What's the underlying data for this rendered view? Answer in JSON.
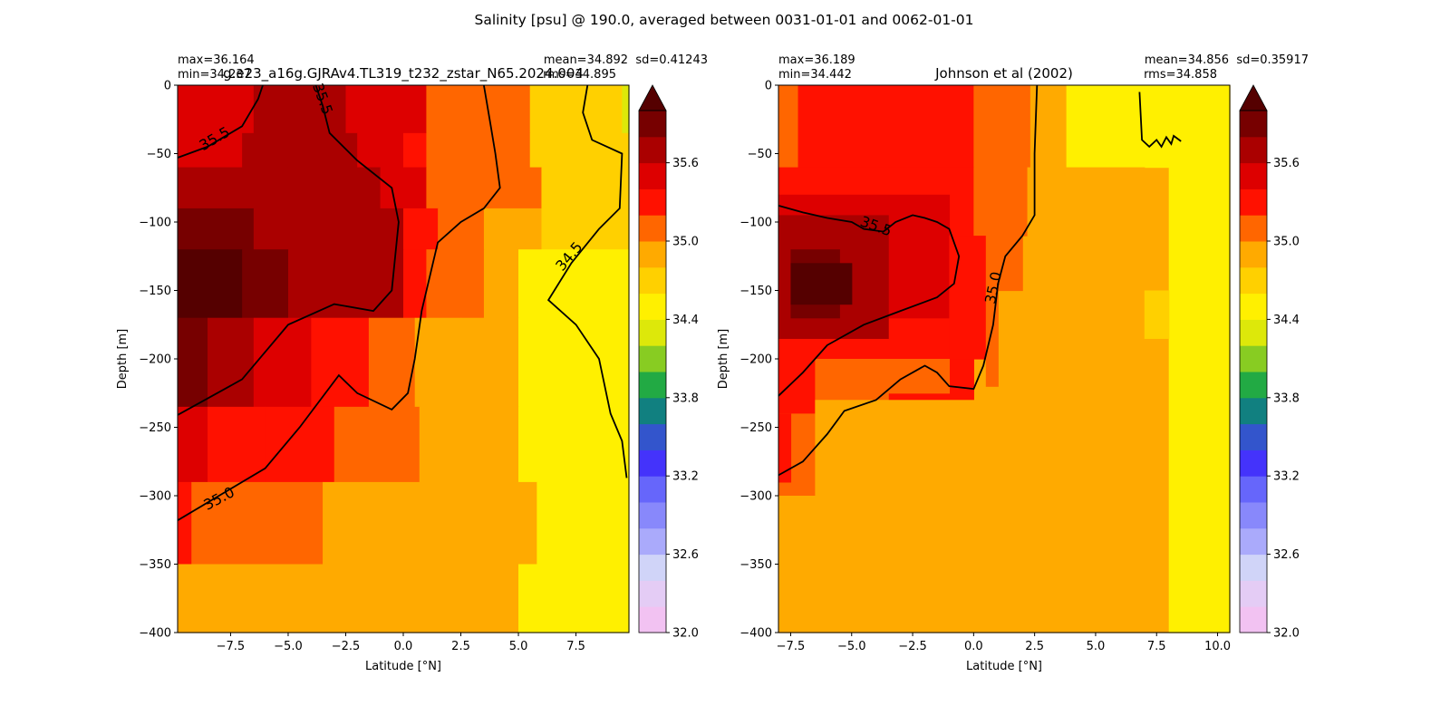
{
  "figure": {
    "suptitle": "Salinity [psu] @ 190.0, averaged between 0031-01-01 and 0062-01-01"
  },
  "colorbar": {
    "levels": [
      32.0,
      32.2,
      32.4,
      32.6,
      32.8,
      33.0,
      33.2,
      33.4,
      33.6,
      33.8,
      34.0,
      34.2,
      34.4,
      34.6,
      34.8,
      35.0,
      35.2,
      35.4,
      35.6,
      35.8,
      36.0
    ],
    "colors": [
      "#f2c2f2",
      "#e4ccf5",
      "#d0d4f8",
      "#aaaafb",
      "#8888fb",
      "#6666fb",
      "#4433fb",
      "#3355cc",
      "#118080",
      "#22aa44",
      "#88cc22",
      "#dde80a",
      "#fff000",
      "#ffd000",
      "#ffaa00",
      "#ff6600",
      "#ff1100",
      "#dd0000",
      "#aa0000",
      "#770000"
    ],
    "extend_color": "#550000",
    "tick_labels": [
      "32.0",
      "32.6",
      "33.2",
      "33.8",
      "34.4",
      "35.0",
      "35.6"
    ]
  },
  "chart_data": [
    {
      "type": "heatmap",
      "title": "g.e23_a16g.GJRAv4.TL319_t232_zstar_N65.2024.004",
      "stats_left": [
        "max=36.164",
        "min=34.237"
      ],
      "stats_right": [
        "mean=34.892  sd=0.41243",
        "rms=34.895"
      ],
      "xlabel": "Latitude [°N]",
      "ylabel": "Depth [m]",
      "xlim": [
        -9.8,
        9.8
      ],
      "ylim": [
        -400,
        0
      ],
      "xtick_values": [
        -7.5,
        -5.0,
        -2.5,
        0.0,
        2.5,
        5.0,
        7.5
      ],
      "xtick_labels": [
        "−7.5",
        "−5.0",
        "−2.5",
        "0.0",
        "2.5",
        "5.0",
        "7.5"
      ],
      "ytick_values": [
        0,
        -50,
        -100,
        -150,
        -200,
        -250,
        -300,
        -350,
        -400
      ],
      "ytick_labels": [
        "0",
        "−50",
        "−100",
        "−150",
        "−200",
        "−250",
        "−300",
        "−350",
        "−400"
      ],
      "cells": [
        [
          -9.8,
          -6.5,
          0,
          -35,
          35.5
        ],
        [
          -6.5,
          -2.5,
          0,
          -35,
          35.6
        ],
        [
          -2.5,
          0.0,
          0,
          -35,
          35.5
        ],
        [
          0.0,
          1.0,
          0,
          -35,
          35.5
        ],
        [
          1.0,
          4.0,
          0,
          -35,
          35.1
        ],
        [
          4.0,
          5.5,
          0,
          -35,
          35.0
        ],
        [
          5.5,
          8.0,
          0,
          -35,
          34.7
        ],
        [
          8.0,
          9.5,
          0,
          -35,
          34.6
        ],
        [
          9.5,
          9.8,
          0,
          -35,
          34.3
        ],
        [
          -9.8,
          -7.0,
          -35,
          -60,
          35.5
        ],
        [
          -7.0,
          -5.0,
          -35,
          -60,
          35.7
        ],
        [
          -5.0,
          -2.0,
          -35,
          -60,
          35.6
        ],
        [
          -2.0,
          0.0,
          -35,
          -60,
          35.5
        ],
        [
          0.0,
          1.0,
          -35,
          -60,
          35.3
        ],
        [
          1.0,
          3.5,
          -35,
          -60,
          35.1
        ],
        [
          3.5,
          5.5,
          -35,
          -60,
          35.0
        ],
        [
          5.5,
          8.0,
          -35,
          -60,
          34.7
        ],
        [
          8.0,
          9.8,
          -35,
          -60,
          34.6
        ],
        [
          -9.8,
          -6.5,
          -60,
          -90,
          35.7
        ],
        [
          -6.5,
          -3.0,
          -60,
          -90,
          35.7
        ],
        [
          -3.0,
          -1.0,
          -60,
          -90,
          35.6
        ],
        [
          -1.0,
          1.0,
          -60,
          -90,
          35.4
        ],
        [
          1.0,
          4.5,
          -60,
          -90,
          35.1
        ],
        [
          4.5,
          6.0,
          -60,
          -90,
          35.0
        ],
        [
          6.0,
          9.8,
          -60,
          -90,
          34.6
        ],
        [
          -9.8,
          -6.5,
          -90,
          -120,
          35.9
        ],
        [
          -6.5,
          -2.0,
          -90,
          -120,
          35.7
        ],
        [
          -2.0,
          0.0,
          -90,
          -120,
          35.6
        ],
        [
          0.0,
          1.5,
          -90,
          -120,
          35.3
        ],
        [
          1.5,
          3.5,
          -90,
          -120,
          35.1
        ],
        [
          3.5,
          6.0,
          -90,
          -120,
          34.9
        ],
        [
          6.0,
          9.8,
          -90,
          -120,
          34.6
        ],
        [
          -9.8,
          -7.0,
          -120,
          -170,
          36.1
        ],
        [
          -7.0,
          -5.0,
          -120,
          -170,
          35.9
        ],
        [
          -5.0,
          -2.0,
          -120,
          -170,
          35.7
        ],
        [
          -2.0,
          0.0,
          -120,
          -170,
          35.6
        ],
        [
          0.0,
          1.0,
          -120,
          -170,
          35.3
        ],
        [
          1.0,
          3.5,
          -120,
          -170,
          35.0
        ],
        [
          3.5,
          5.0,
          -120,
          -170,
          34.8
        ],
        [
          5.0,
          9.8,
          -120,
          -170,
          34.5
        ],
        [
          -9.8,
          -8.5,
          -170,
          -235,
          35.8
        ],
        [
          -8.5,
          -6.5,
          -170,
          -235,
          35.7
        ],
        [
          -6.5,
          -4.0,
          -170,
          -235,
          35.5
        ],
        [
          -4.0,
          -1.5,
          -170,
          -235,
          35.2
        ],
        [
          -1.5,
          0.5,
          -170,
          -235,
          35.1
        ],
        [
          0.5,
          2.5,
          -170,
          -235,
          34.9
        ],
        [
          2.5,
          5.0,
          -170,
          -235,
          34.8
        ],
        [
          5.0,
          9.8,
          -170,
          -235,
          34.5
        ],
        [
          -9.8,
          -8.5,
          -235,
          -290,
          35.5
        ],
        [
          -8.5,
          -6.0,
          -235,
          -290,
          35.3
        ],
        [
          -6.0,
          -3.0,
          -235,
          -290,
          35.2
        ],
        [
          -3.0,
          0.7,
          -235,
          -290,
          35.0
        ],
        [
          0.7,
          5.0,
          -235,
          -290,
          34.8
        ],
        [
          5.0,
          9.8,
          -235,
          -290,
          34.5
        ],
        [
          -9.8,
          -9.2,
          -290,
          -350,
          35.2
        ],
        [
          -9.2,
          -3.5,
          -290,
          -350,
          35.0
        ],
        [
          -3.5,
          5.8,
          -290,
          -350,
          34.8
        ],
        [
          5.8,
          9.8,
          -290,
          -350,
          34.5
        ],
        [
          -9.8,
          5.0,
          -350,
          -400,
          34.8
        ],
        [
          5.0,
          9.8,
          -350,
          -400,
          34.5
        ]
      ],
      "contours": [
        {
          "label": "35.5",
          "points": [
            [
              -9.8,
              -53
            ],
            [
              -8.5,
              -45
            ],
            [
              -7,
              -30
            ],
            [
              -6.3,
              -10
            ],
            [
              -6.1,
              0
            ]
          ]
        },
        {
          "label": "35.5",
          "points": [
            [
              -3.8,
              0
            ],
            [
              -3.5,
              -15
            ],
            [
              -3.2,
              -35
            ],
            [
              -2,
              -55
            ],
            [
              -0.5,
              -75
            ],
            [
              -0.2,
              -100
            ],
            [
              -0.5,
              -150
            ],
            [
              -1.3,
              -165
            ],
            [
              -3,
              -160
            ],
            [
              -5,
              -175
            ],
            [
              -7,
              -215
            ],
            [
              -9.8,
              -241
            ]
          ]
        },
        {
          "label": "35.0",
          "points": [
            [
              -9.8,
              -318
            ],
            [
              -8,
              -300
            ],
            [
              -6,
              -280
            ],
            [
              -4.5,
              -250
            ],
            [
              -2.8,
              -212
            ],
            [
              -2,
              -225
            ],
            [
              -0.5,
              -237
            ],
            [
              0.2,
              -225
            ],
            [
              0.5,
              -200
            ],
            [
              0.8,
              -165
            ],
            [
              1.5,
              -115
            ],
            [
              2.5,
              -100
            ],
            [
              3.5,
              -90
            ],
            [
              4.2,
              -75
            ],
            [
              4.0,
              -50
            ],
            [
              3.8,
              -30
            ],
            [
              3.5,
              0
            ]
          ]
        },
        {
          "label": "34.5",
          "points": [
            [
              8.0,
              0
            ],
            [
              7.8,
              -20
            ],
            [
              8.2,
              -40
            ],
            [
              9.5,
              -50
            ],
            [
              9.4,
              -90
            ],
            [
              8.5,
              -105
            ],
            [
              7.3,
              -130
            ],
            [
              6.3,
              -157
            ],
            [
              7.5,
              -175
            ],
            [
              8.5,
              -200
            ],
            [
              9.0,
              -240
            ],
            [
              9.5,
              -260
            ],
            [
              9.7,
              -287
            ]
          ]
        }
      ],
      "contour_labels": [
        {
          "text": "35.5",
          "x": -8.2,
          "y": -39,
          "angle": -30
        },
        {
          "text": "35.5",
          "x": -3.5,
          "y": -10,
          "angle": 70
        },
        {
          "text": "35.0",
          "x": -8.0,
          "y": -302,
          "angle": -28
        },
        {
          "text": "34.5",
          "x": 7.2,
          "y": -125,
          "angle": -50
        }
      ]
    },
    {
      "type": "heatmap",
      "title": "Johnson et al (2002)",
      "stats_left": [
        "max=36.189",
        "min=34.442"
      ],
      "stats_right": [
        "mean=34.856  sd=0.35917",
        "rms=34.858"
      ],
      "xlabel": "Latitude [°N]",
      "ylabel": "Depth [m]",
      "xlim": [
        -8.0,
        10.5
      ],
      "ylim": [
        -400,
        0
      ],
      "xtick_values": [
        -7.5,
        -5.0,
        -2.5,
        0.0,
        2.5,
        5.0,
        7.5,
        10.0
      ],
      "xtick_labels": [
        "−7.5",
        "−5.0",
        "−2.5",
        "0.0",
        "2.5",
        "5.0",
        "7.5",
        "10.0"
      ],
      "ytick_values": [
        0,
        -50,
        -100,
        -150,
        -200,
        -250,
        -300,
        -350,
        -400
      ],
      "ytick_labels": [
        "0",
        "−50",
        "−100",
        "−150",
        "−200",
        "−250",
        "−300",
        "−350",
        "−400"
      ],
      "cells": [
        [
          -8.0,
          10.5,
          0,
          -400,
          34.8
        ],
        [
          8.0,
          10.5,
          0,
          -400,
          34.5
        ],
        [
          3.8,
          8.0,
          0,
          -60,
          34.5
        ],
        [
          -8.0,
          -7.2,
          0,
          -60,
          35.1
        ],
        [
          -7.2,
          0.0,
          0,
          -60,
          35.3
        ],
        [
          0.0,
          2.3,
          0,
          -60,
          35.1
        ],
        [
          -8.0,
          0.0,
          -60,
          -240,
          35.3
        ],
        [
          0.0,
          2.2,
          -60,
          -110,
          35.1
        ],
        [
          2.2,
          7.0,
          -60,
          -110,
          34.9
        ],
        [
          -8.0,
          -1.0,
          -80,
          -170,
          35.5
        ],
        [
          -8.0,
          -3.5,
          -95,
          -185,
          35.7
        ],
        [
          -7.5,
          -5.5,
          -120,
          -170,
          35.9
        ],
        [
          -7.5,
          -5.0,
          -130,
          -160,
          36.1
        ],
        [
          -1.0,
          0.5,
          -110,
          -200,
          35.3
        ],
        [
          0.5,
          1.0,
          -110,
          -220,
          35.1
        ],
        [
          1.0,
          2.0,
          -110,
          -150,
          35.0
        ],
        [
          7.0,
          8.0,
          -150,
          -185,
          34.6
        ],
        [
          -8.0,
          -6.5,
          -240,
          -320,
          35.1
        ],
        [
          -6.5,
          -3.5,
          -200,
          -250,
          35.1
        ],
        [
          -8.0,
          -7.5,
          -240,
          -290,
          35.3
        ],
        [
          -4.5,
          -1.0,
          -200,
          -225,
          35.1
        ],
        [
          -8.0,
          -6.5,
          -300,
          -330,
          34.9
        ],
        [
          -6.5,
          2.0,
          -230,
          -320,
          34.9
        ],
        [
          -3.0,
          1.5,
          -280,
          -320,
          34.8
        ]
      ],
      "contours": [
        {
          "label": "35.5",
          "points": [
            [
              -8.0,
              -88
            ],
            [
              -7,
              -93
            ],
            [
              -6,
              -97
            ],
            [
              -5,
              -100
            ],
            [
              -4.5,
              -105
            ],
            [
              -3.7,
              -107
            ],
            [
              -3.2,
              -100
            ],
            [
              -2.5,
              -95
            ],
            [
              -2,
              -97
            ],
            [
              -1.5,
              -100
            ],
            [
              -1,
              -105
            ],
            [
              -0.6,
              -125
            ],
            [
              -0.8,
              -145
            ],
            [
              -1.5,
              -155
            ],
            [
              -3,
              -165
            ],
            [
              -4.5,
              -175
            ],
            [
              -6,
              -190
            ],
            [
              -7,
              -210
            ],
            [
              -8.0,
              -227
            ]
          ]
        },
        {
          "label": "35.0",
          "points": [
            [
              -8.0,
              -285
            ],
            [
              -7,
              -275
            ],
            [
              -6,
              -255
            ],
            [
              -5.3,
              -238
            ],
            [
              -4,
              -230
            ],
            [
              -3,
              -215
            ],
            [
              -2,
              -205
            ],
            [
              -1.5,
              -210
            ],
            [
              -1,
              -220
            ],
            [
              0,
              -222
            ],
            [
              0.4,
              -205
            ],
            [
              0.8,
              -175
            ],
            [
              1.0,
              -145
            ],
            [
              1.3,
              -125
            ],
            [
              2,
              -110
            ],
            [
              2.5,
              -95
            ],
            [
              2.5,
              -50
            ],
            [
              2.6,
              0
            ]
          ]
        },
        {
          "label": "",
          "points": [
            [
              6.8,
              -5
            ],
            [
              6.9,
              -40
            ],
            [
              7.2,
              -45
            ],
            [
              7.5,
              -40
            ],
            [
              7.7,
              -45
            ],
            [
              7.9,
              -38
            ],
            [
              8.1,
              -43
            ],
            [
              8.2,
              -37
            ],
            [
              8.5,
              -41
            ]
          ]
        }
      ],
      "contour_labels": [
        {
          "text": "35.5",
          "x": -4.0,
          "y": -103,
          "angle": 20
        },
        {
          "text": "35.0",
          "x": 0.8,
          "y": -148,
          "angle": -78
        }
      ]
    }
  ]
}
